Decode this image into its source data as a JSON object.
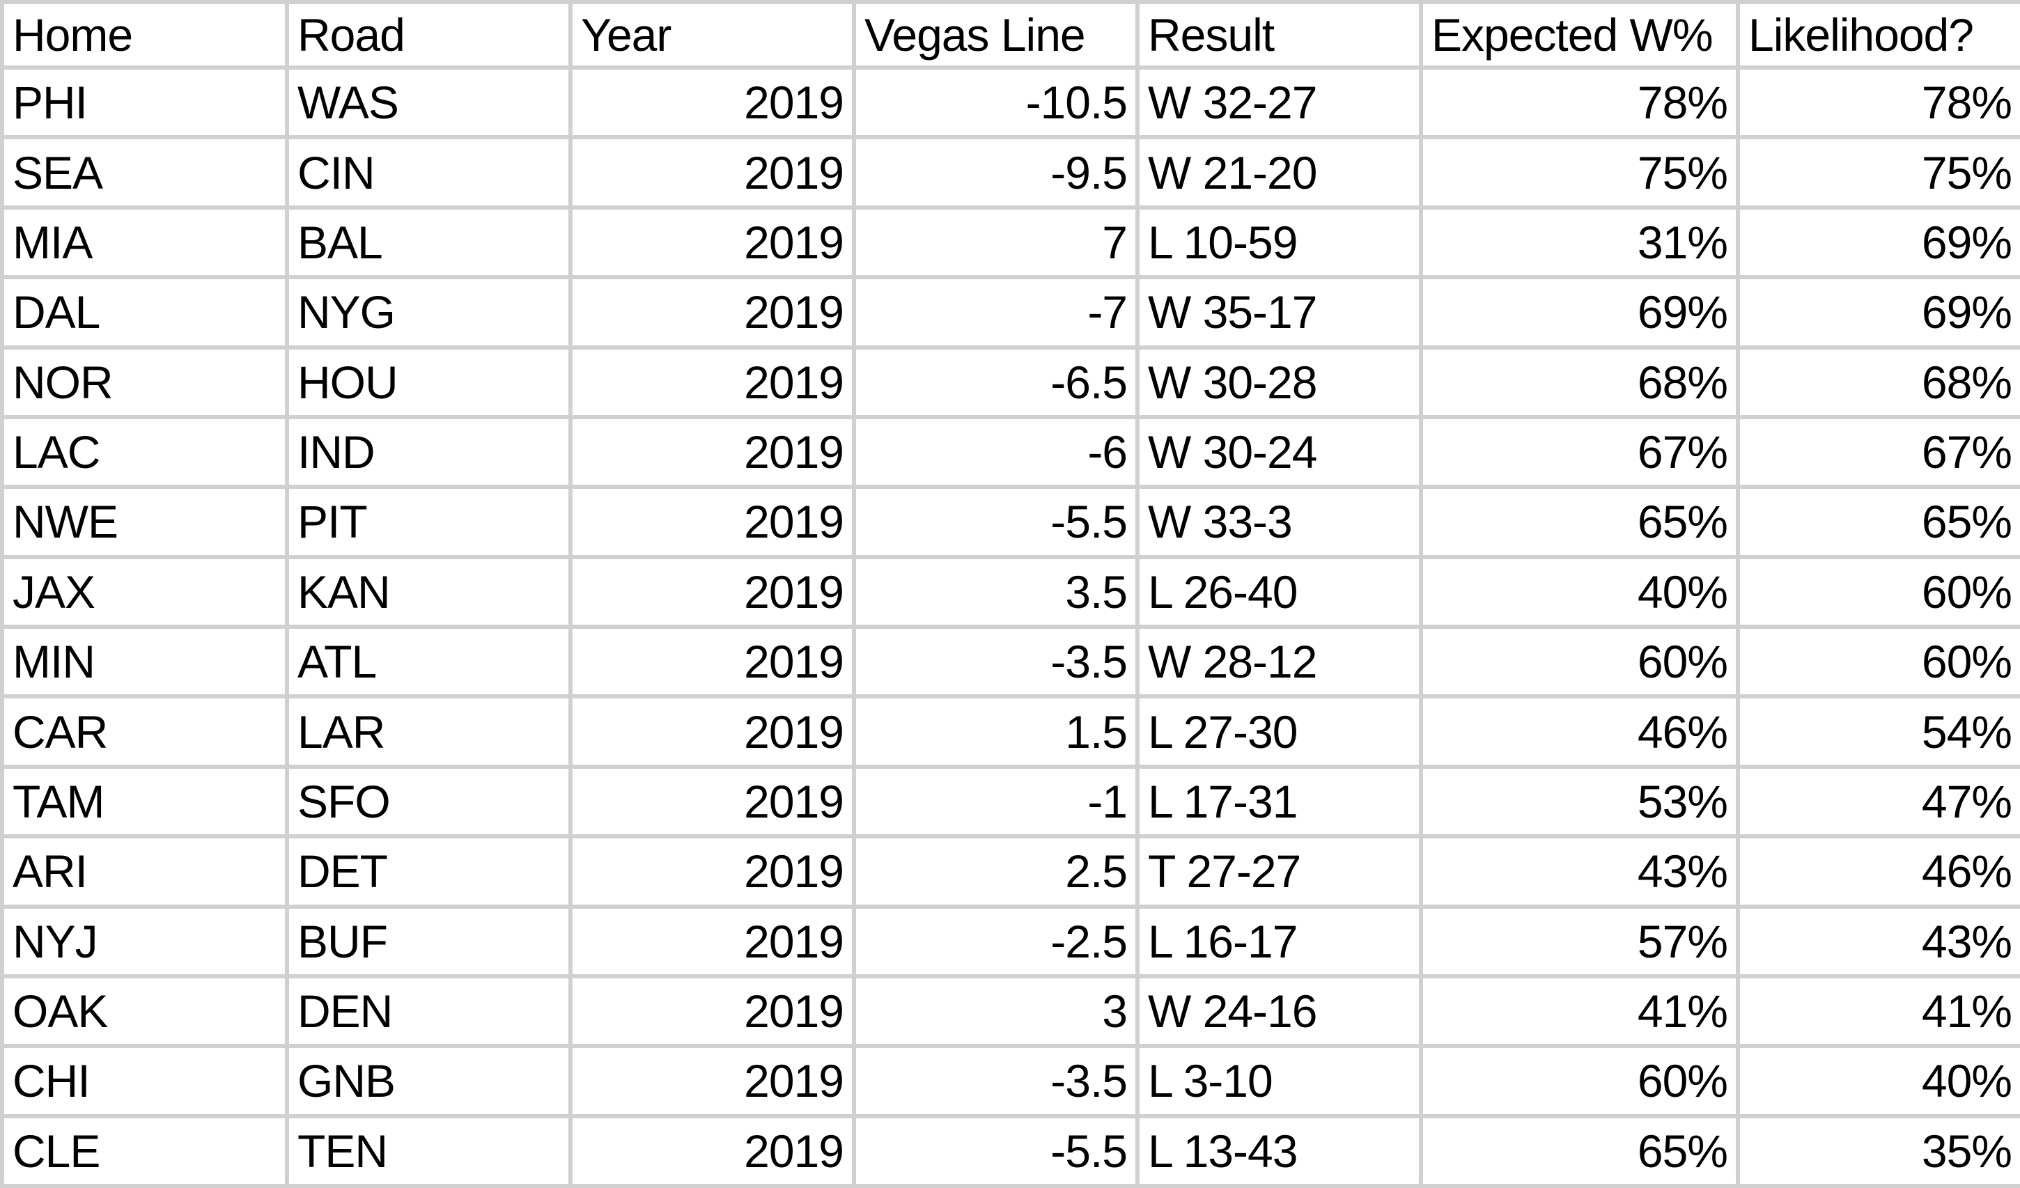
{
  "table": {
    "headers": [
      "Home",
      "Road",
      "Year",
      "Vegas Line",
      "Result",
      "Expected W%",
      "Likelihood?"
    ],
    "rows": [
      [
        "PHI",
        "WAS",
        "2019",
        "-10.5",
        "W 32-27",
        "78%",
        "78%"
      ],
      [
        "SEA",
        "CIN",
        "2019",
        "-9.5",
        "W 21-20",
        "75%",
        "75%"
      ],
      [
        "MIA",
        "BAL",
        "2019",
        "7",
        "L 10-59",
        "31%",
        "69%"
      ],
      [
        "DAL",
        "NYG",
        "2019",
        "-7",
        "W 35-17",
        "69%",
        "69%"
      ],
      [
        "NOR",
        "HOU",
        "2019",
        "-6.5",
        "W 30-28",
        "68%",
        "68%"
      ],
      [
        "LAC",
        "IND",
        "2019",
        "-6",
        "W 30-24",
        "67%",
        "67%"
      ],
      [
        "NWE",
        "PIT",
        "2019",
        "-5.5",
        "W 33-3",
        "65%",
        "65%"
      ],
      [
        "JAX",
        "KAN",
        "2019",
        "3.5",
        "L 26-40",
        "40%",
        "60%"
      ],
      [
        "MIN",
        "ATL",
        "2019",
        "-3.5",
        "W 28-12",
        "60%",
        "60%"
      ],
      [
        "CAR",
        "LAR",
        "2019",
        "1.5",
        "L 27-30",
        "46%",
        "54%"
      ],
      [
        "TAM",
        "SFO",
        "2019",
        "-1",
        "L 17-31",
        "53%",
        "47%"
      ],
      [
        "ARI",
        "DET",
        "2019",
        "2.5",
        "T 27-27",
        "43%",
        "46%"
      ],
      [
        "NYJ",
        "BUF",
        "2019",
        "-2.5",
        "L 16-17",
        "57%",
        "43%"
      ],
      [
        "OAK",
        "DEN",
        "2019",
        "3",
        "W 24-16",
        "41%",
        "41%"
      ],
      [
        "CHI",
        "GNB",
        "2019",
        "-3.5",
        "L 3-10",
        "60%",
        "40%"
      ],
      [
        "CLE",
        "TEN",
        "2019",
        "-5.5",
        "L 13-43",
        "65%",
        "35%"
      ]
    ]
  },
  "colors": {
    "gridline": "#d0d0d0",
    "text": "#000000",
    "background": "#ffffff"
  }
}
